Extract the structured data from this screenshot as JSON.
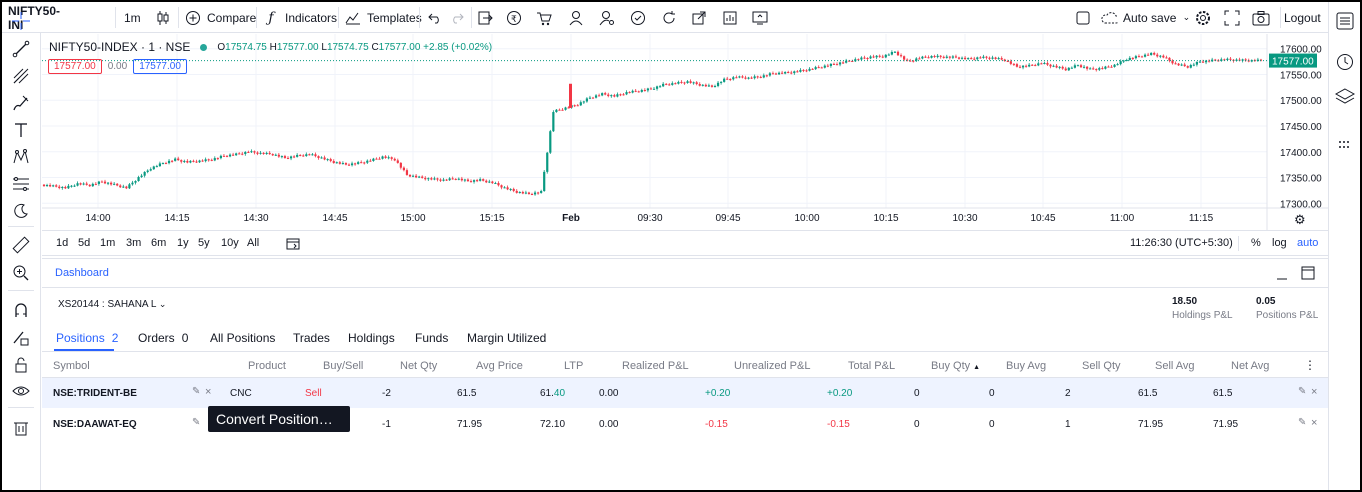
{
  "topbar": {
    "symbol": "NIFTY50-INI",
    "interval": "1m",
    "compare": "Compare",
    "indicators": "Indicators",
    "templates": "Templates",
    "autosave": "Auto save",
    "logout": "Logout"
  },
  "legend": {
    "symbol": "NIFTY50-INDEX · 1 · NSE",
    "o_label": "O",
    "o": "17574.75",
    "h_label": "H",
    "h": "17577.00",
    "l_label": "L",
    "l": "17574.75",
    "c_label": "C",
    "c": "17577.00",
    "change": "+2.85 (+0.02%)",
    "sell_price": "17577.00",
    "spread": "0.00",
    "buy_price": "17577.00"
  },
  "chart_data": {
    "type": "candlestick",
    "y_ticks": [
      "17600.00",
      "17550.00",
      "17500.00",
      "17450.00",
      "17400.00",
      "17350.00",
      "17300.00"
    ],
    "ylim": [
      17285,
      17615
    ],
    "last_price": "17577.00",
    "x_ticks": [
      "14:00",
      "14:15",
      "14:30",
      "14:45",
      "15:00",
      "15:15",
      "Feb",
      "09:30",
      "09:45",
      "10:00",
      "10:15",
      "10:30",
      "10:45",
      "11:00",
      "11:15"
    ],
    "close_path": [
      17336,
      17333,
      17330,
      17338,
      17335,
      17342,
      17336,
      17330,
      17350,
      17368,
      17378,
      17385,
      17380,
      17382,
      17385,
      17392,
      17395,
      17400,
      17397,
      17395,
      17388,
      17392,
      17395,
      17388,
      17380,
      17375,
      17378,
      17383,
      17390,
      17385,
      17355,
      17350,
      17347,
      17345,
      17348,
      17343,
      17345,
      17340,
      17330,
      17322,
      17318,
      17322,
      17478,
      17485,
      17492,
      17505,
      17512,
      17508,
      17515,
      17518,
      17522,
      17530,
      17533,
      17536,
      17530,
      17526,
      17540,
      17545,
      17543,
      17546,
      17552,
      17553,
      17556,
      17560,
      17565,
      17570,
      17575,
      17580,
      17584,
      17585,
      17594,
      17575,
      17582,
      17585,
      17584,
      17583,
      17580,
      17583,
      17582,
      17578,
      17565,
      17567,
      17572,
      17566,
      17560,
      17568,
      17560,
      17562,
      17568,
      17580,
      17585,
      17590,
      17584,
      17570,
      17565,
      17575,
      17577,
      17579,
      17578,
      17577,
      17577
    ]
  },
  "rangebar": {
    "ranges": [
      "1d",
      "5d",
      "1m",
      "3m",
      "6m",
      "1y",
      "5y",
      "10y",
      "All"
    ],
    "time": "11:26:30 (UTC+5:30)",
    "pct": "%",
    "log": "log",
    "auto": "auto"
  },
  "panel": {
    "tab": "Dashboard",
    "account": "XS20144 : SAHANA L",
    "holdings_pl_value": "18.50",
    "holdings_pl_label": "Holdings P&L",
    "positions_pl_value": "0.05",
    "positions_pl_label": "Positions P&L",
    "tabs": [
      {
        "label": "Positions",
        "count": "2"
      },
      {
        "label": "Orders",
        "count": "0"
      },
      {
        "label": "All Positions",
        "count": ""
      },
      {
        "label": "Trades",
        "count": ""
      },
      {
        "label": "Holdings",
        "count": ""
      },
      {
        "label": "Funds",
        "count": ""
      },
      {
        "label": "Margin Utilized",
        "count": ""
      }
    ],
    "columns": [
      "Symbol",
      "Product",
      "Buy/Sell",
      "Net Qty",
      "Avg Price",
      "LTP",
      "Realized P&L",
      "Unrealized P&L",
      "Total P&L",
      "Buy Qty",
      "Buy Avg",
      "Sell Qty",
      "Sell Avg",
      "Net Avg"
    ],
    "sort_arrow": "▲",
    "rows": [
      {
        "symbol": "NSE:TRIDENT-BE",
        "product": "CNC",
        "side": "Sell",
        "net_qty": "-2",
        "avg_price": "61.5",
        "ltp_a": "61.",
        "ltp_b": "40",
        "realized": "0.00",
        "unrealized": "+0.20",
        "total": "+0.20",
        "buy_qty": "0",
        "buy_avg": "0",
        "sell_qty": "2",
        "sell_avg": "61.5",
        "net_avg": "61.5"
      },
      {
        "symbol": "NSE:DAAWAT-EQ",
        "product": "",
        "side": "",
        "net_qty": "-1",
        "avg_price": "71.95",
        "ltp_a": "72.10",
        "ltp_b": "",
        "realized": "0.00",
        "unrealized": "-0.15",
        "total": "-0.15",
        "buy_qty": "0",
        "buy_avg": "0",
        "sell_qty": "1",
        "sell_avg": "71.95",
        "net_avg": "71.95"
      }
    ],
    "tooltip": "Convert Position…"
  },
  "colors": {
    "up": "#089981",
    "down": "#f23645",
    "accent": "#2962ff",
    "text": "#131722",
    "muted": "#787b86",
    "border": "#e0e3eb"
  }
}
